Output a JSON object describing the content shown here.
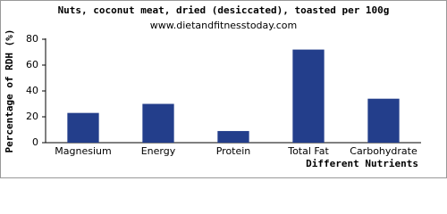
{
  "chart_data": {
    "type": "bar",
    "title": "Nuts, coconut meat, dried (desiccated), toasted per 100g",
    "subtitle": "www.dietandfitnesstoday.com",
    "y_label": "Percentage of RDH (%)",
    "x_label": "Different Nutrients",
    "categories": [
      "Magnesium",
      "Energy",
      "Protein",
      "Total Fat",
      "Carbohydrate"
    ],
    "values": [
      23,
      30,
      9,
      72,
      34
    ],
    "color": "#233e8b",
    "ylim": [
      0,
      80
    ],
    "yticks": [
      0,
      20,
      40,
      60,
      80
    ],
    "grid": false
  }
}
